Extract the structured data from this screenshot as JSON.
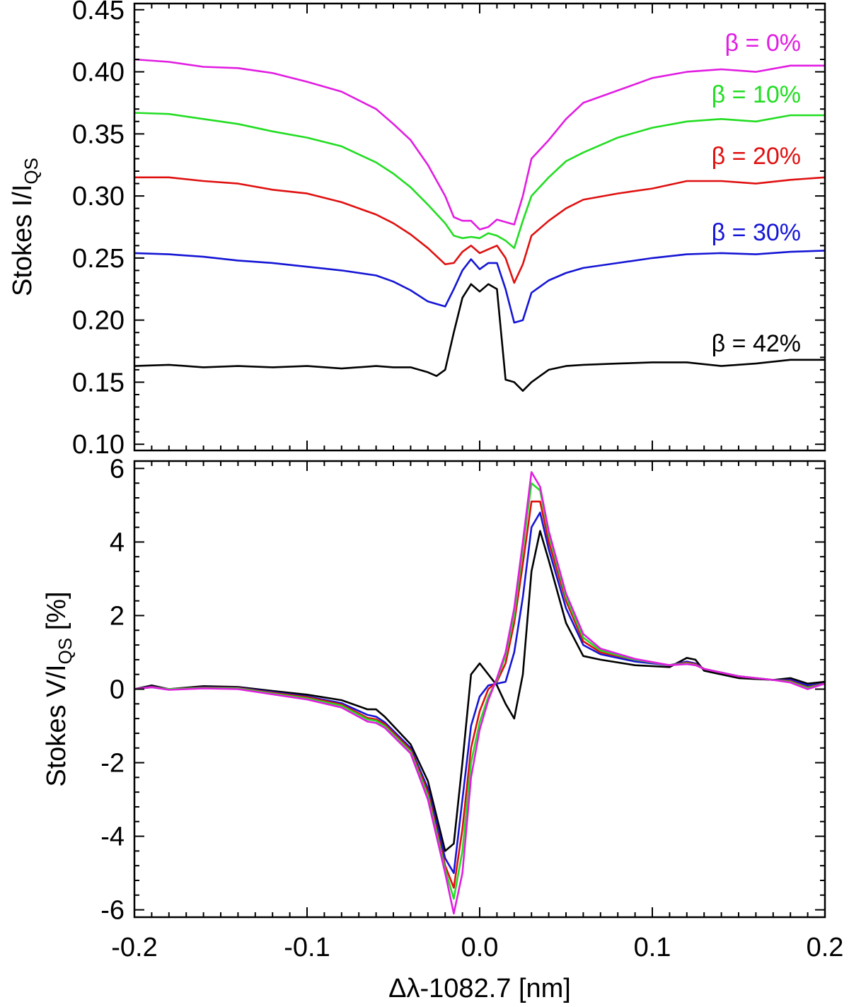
{
  "chart_data": [
    {
      "type": "line",
      "xlim": [
        -0.2,
        0.2
      ],
      "ylim": [
        0.095,
        0.455
      ],
      "ylabel": {
        "main": "Stokes I/I",
        "sub": "QS"
      },
      "yticks": [
        "0.10",
        "0.15",
        "0.20",
        "0.25",
        "0.30",
        "0.35",
        "0.40",
        "0.45"
      ],
      "ytick_values": [
        0.1,
        0.15,
        0.2,
        0.25,
        0.3,
        0.35,
        0.4,
        0.45
      ],
      "xtick_values": [
        -0.2,
        -0.1,
        0.0,
        0.1,
        0.2
      ],
      "legend": [
        {
          "label": "β = 0%",
          "color": "#e11de1"
        },
        {
          "label": "β = 10%",
          "color": "#22dd22"
        },
        {
          "label": "β = 20%",
          "color": "#e01010"
        },
        {
          "label": "β = 30%",
          "color": "#1515d5"
        },
        {
          "label": "β = 42%",
          "color": "#000000"
        }
      ],
      "series": [
        {
          "name": "β = 0%",
          "color": "#e11de1",
          "x": [
            -0.2,
            -0.18,
            -0.16,
            -0.14,
            -0.12,
            -0.1,
            -0.08,
            -0.06,
            -0.05,
            -0.04,
            -0.03,
            -0.02,
            -0.015,
            -0.01,
            -0.005,
            0.0,
            0.005,
            0.01,
            0.015,
            0.02,
            0.025,
            0.03,
            0.04,
            0.05,
            0.06,
            0.08,
            0.1,
            0.12,
            0.14,
            0.16,
            0.18,
            0.2
          ],
          "y": [
            0.41,
            0.408,
            0.404,
            0.403,
            0.399,
            0.392,
            0.384,
            0.37,
            0.358,
            0.345,
            0.325,
            0.3,
            0.283,
            0.28,
            0.28,
            0.273,
            0.275,
            0.281,
            0.279,
            0.277,
            0.3,
            0.33,
            0.345,
            0.362,
            0.375,
            0.385,
            0.395,
            0.4,
            0.402,
            0.4,
            0.405,
            0.405
          ]
        },
        {
          "name": "β = 10%",
          "color": "#22dd22",
          "x": [
            -0.2,
            -0.18,
            -0.16,
            -0.14,
            -0.12,
            -0.1,
            -0.08,
            -0.06,
            -0.05,
            -0.04,
            -0.03,
            -0.02,
            -0.015,
            -0.01,
            -0.005,
            0.0,
            0.005,
            0.01,
            0.015,
            0.02,
            0.025,
            0.03,
            0.04,
            0.05,
            0.06,
            0.08,
            0.1,
            0.12,
            0.14,
            0.16,
            0.18,
            0.2
          ],
          "y": [
            0.367,
            0.366,
            0.362,
            0.358,
            0.352,
            0.347,
            0.34,
            0.327,
            0.318,
            0.307,
            0.293,
            0.278,
            0.268,
            0.266,
            0.267,
            0.266,
            0.27,
            0.268,
            0.264,
            0.258,
            0.28,
            0.3,
            0.315,
            0.328,
            0.335,
            0.347,
            0.355,
            0.36,
            0.362,
            0.36,
            0.365,
            0.365
          ]
        },
        {
          "name": "β = 20%",
          "color": "#e01010",
          "x": [
            -0.2,
            -0.18,
            -0.16,
            -0.14,
            -0.12,
            -0.1,
            -0.08,
            -0.06,
            -0.05,
            -0.04,
            -0.03,
            -0.02,
            -0.015,
            -0.01,
            -0.005,
            0.0,
            0.005,
            0.01,
            0.015,
            0.02,
            0.025,
            0.03,
            0.04,
            0.05,
            0.06,
            0.08,
            0.1,
            0.12,
            0.14,
            0.16,
            0.18,
            0.2
          ],
          "y": [
            0.315,
            0.315,
            0.312,
            0.31,
            0.305,
            0.302,
            0.295,
            0.285,
            0.278,
            0.269,
            0.258,
            0.245,
            0.246,
            0.255,
            0.26,
            0.254,
            0.257,
            0.26,
            0.25,
            0.23,
            0.245,
            0.268,
            0.28,
            0.29,
            0.297,
            0.302,
            0.306,
            0.312,
            0.312,
            0.31,
            0.313,
            0.315
          ]
        },
        {
          "name": "β = 30%",
          "color": "#1515d5",
          "x": [
            -0.2,
            -0.18,
            -0.16,
            -0.14,
            -0.12,
            -0.1,
            -0.08,
            -0.06,
            -0.05,
            -0.04,
            -0.03,
            -0.02,
            -0.015,
            -0.01,
            -0.005,
            0.0,
            0.005,
            0.01,
            0.015,
            0.02,
            0.025,
            0.03,
            0.04,
            0.05,
            0.06,
            0.08,
            0.1,
            0.12,
            0.14,
            0.16,
            0.18,
            0.2
          ],
          "y": [
            0.254,
            0.253,
            0.251,
            0.248,
            0.246,
            0.243,
            0.24,
            0.236,
            0.231,
            0.224,
            0.215,
            0.211,
            0.225,
            0.24,
            0.249,
            0.241,
            0.246,
            0.246,
            0.225,
            0.198,
            0.2,
            0.222,
            0.232,
            0.238,
            0.242,
            0.246,
            0.25,
            0.253,
            0.254,
            0.253,
            0.255,
            0.256
          ]
        },
        {
          "name": "β = 42%",
          "color": "#000000",
          "x": [
            -0.2,
            -0.18,
            -0.16,
            -0.14,
            -0.12,
            -0.1,
            -0.08,
            -0.06,
            -0.05,
            -0.04,
            -0.03,
            -0.025,
            -0.02,
            -0.015,
            -0.01,
            -0.005,
            0.0,
            0.005,
            0.01,
            0.015,
            0.02,
            0.025,
            0.03,
            0.04,
            0.05,
            0.06,
            0.08,
            0.1,
            0.12,
            0.14,
            0.16,
            0.18,
            0.2
          ],
          "y": [
            0.163,
            0.164,
            0.162,
            0.163,
            0.162,
            0.163,
            0.161,
            0.163,
            0.162,
            0.162,
            0.158,
            0.155,
            0.16,
            0.19,
            0.218,
            0.229,
            0.223,
            0.229,
            0.225,
            0.152,
            0.15,
            0.143,
            0.15,
            0.16,
            0.163,
            0.164,
            0.165,
            0.166,
            0.166,
            0.163,
            0.165,
            0.168,
            0.168
          ]
        }
      ]
    },
    {
      "type": "line",
      "xlim": [
        -0.2,
        0.2
      ],
      "ylim": [
        -6.2,
        6.2
      ],
      "xlabel": "Δλ-1082.7 [nm]",
      "ylabel": {
        "main": "Stokes V/I",
        "sub": "QS",
        "suffix": " [%]"
      },
      "yticks": [
        "-6",
        "-4",
        "-2",
        "0",
        "2",
        "4",
        "6"
      ],
      "ytick_values": [
        -6,
        -4,
        -2,
        0,
        2,
        4,
        6
      ],
      "xticks": [
        "-0.2",
        "-0.1",
        "0.0",
        "0.1",
        "0.2"
      ],
      "xtick_values": [
        -0.2,
        -0.1,
        0.0,
        0.1,
        0.2
      ],
      "series": [
        {
          "name": "β = 42%",
          "color": "#000000",
          "x": [
            -0.2,
            -0.19,
            -0.18,
            -0.16,
            -0.14,
            -0.12,
            -0.1,
            -0.08,
            -0.065,
            -0.06,
            -0.055,
            -0.04,
            -0.03,
            -0.02,
            -0.015,
            -0.01,
            -0.005,
            0.0,
            0.005,
            0.01,
            0.015,
            0.02,
            0.025,
            0.03,
            0.035,
            0.04,
            0.05,
            0.06,
            0.07,
            0.09,
            0.11,
            0.12,
            0.125,
            0.13,
            0.15,
            0.17,
            0.18,
            0.19,
            0.2
          ],
          "y": [
            0.0,
            0.1,
            0.0,
            0.08,
            0.06,
            -0.05,
            -0.15,
            -0.3,
            -0.55,
            -0.55,
            -0.75,
            -1.5,
            -2.5,
            -4.4,
            -4.2,
            -2.0,
            0.4,
            0.7,
            0.4,
            0.1,
            -0.4,
            -0.8,
            0.4,
            3.2,
            4.3,
            3.5,
            1.8,
            0.9,
            0.8,
            0.65,
            0.6,
            0.85,
            0.8,
            0.5,
            0.3,
            0.25,
            0.3,
            0.15,
            0.2
          ]
        },
        {
          "name": "β = 30%",
          "color": "#1515d5",
          "x": [
            -0.2,
            -0.19,
            -0.18,
            -0.16,
            -0.14,
            -0.12,
            -0.1,
            -0.08,
            -0.065,
            -0.06,
            -0.055,
            -0.04,
            -0.03,
            -0.02,
            -0.015,
            -0.01,
            -0.005,
            0.0,
            0.005,
            0.01,
            0.015,
            0.02,
            0.025,
            0.03,
            0.035,
            0.04,
            0.05,
            0.06,
            0.07,
            0.09,
            0.11,
            0.12,
            0.125,
            0.13,
            0.15,
            0.17,
            0.18,
            0.19,
            0.2
          ],
          "y": [
            0.0,
            0.07,
            0.0,
            0.05,
            0.04,
            -0.08,
            -0.2,
            -0.38,
            -0.7,
            -0.75,
            -0.9,
            -1.6,
            -2.7,
            -4.6,
            -5.0,
            -3.0,
            -1.0,
            -0.2,
            0.1,
            0.15,
            0.2,
            1.0,
            2.5,
            4.4,
            4.8,
            3.8,
            2.2,
            1.2,
            0.95,
            0.75,
            0.65,
            0.75,
            0.7,
            0.55,
            0.35,
            0.25,
            0.25,
            0.1,
            0.15
          ]
        },
        {
          "name": "β = 20%",
          "color": "#e01010",
          "x": [
            -0.2,
            -0.19,
            -0.18,
            -0.16,
            -0.14,
            -0.12,
            -0.1,
            -0.08,
            -0.065,
            -0.06,
            -0.055,
            -0.04,
            -0.03,
            -0.02,
            -0.015,
            -0.01,
            -0.005,
            0.0,
            0.005,
            0.01,
            0.015,
            0.02,
            0.025,
            0.03,
            0.035,
            0.04,
            0.05,
            0.06,
            0.07,
            0.09,
            0.11,
            0.12,
            0.125,
            0.13,
            0.15,
            0.17,
            0.18,
            0.19,
            0.2
          ],
          "y": [
            0.0,
            0.06,
            0.0,
            0.04,
            0.03,
            -0.1,
            -0.22,
            -0.42,
            -0.78,
            -0.82,
            -0.95,
            -1.65,
            -2.8,
            -4.8,
            -5.4,
            -3.8,
            -1.6,
            -0.6,
            0.0,
            0.2,
            0.7,
            1.8,
            3.4,
            5.1,
            5.1,
            4.0,
            2.4,
            1.3,
            1.0,
            0.8,
            0.65,
            0.72,
            0.68,
            0.55,
            0.35,
            0.25,
            0.22,
            0.05,
            0.15
          ]
        },
        {
          "name": "β = 10%",
          "color": "#22dd22",
          "x": [
            -0.2,
            -0.19,
            -0.18,
            -0.16,
            -0.14,
            -0.12,
            -0.1,
            -0.08,
            -0.065,
            -0.06,
            -0.055,
            -0.04,
            -0.03,
            -0.02,
            -0.015,
            -0.01,
            -0.005,
            0.0,
            0.005,
            0.01,
            0.015,
            0.02,
            0.025,
            0.03,
            0.035,
            0.04,
            0.05,
            0.06,
            0.07,
            0.09,
            0.11,
            0.12,
            0.125,
            0.13,
            0.15,
            0.17,
            0.18,
            0.19,
            0.2
          ],
          "y": [
            0.0,
            0.05,
            0.0,
            0.03,
            0.02,
            -0.12,
            -0.25,
            -0.45,
            -0.82,
            -0.86,
            -1.0,
            -1.7,
            -2.9,
            -4.9,
            -5.7,
            -4.4,
            -2.0,
            -0.9,
            -0.2,
            0.25,
            0.9,
            2.0,
            3.8,
            5.6,
            5.4,
            4.2,
            2.5,
            1.4,
            1.05,
            0.8,
            0.65,
            0.7,
            0.66,
            0.55,
            0.35,
            0.25,
            0.2,
            0.03,
            0.15
          ]
        },
        {
          "name": "β = 0%",
          "color": "#e11de1",
          "x": [
            -0.2,
            -0.19,
            -0.18,
            -0.16,
            -0.14,
            -0.12,
            -0.1,
            -0.08,
            -0.065,
            -0.06,
            -0.055,
            -0.04,
            -0.03,
            -0.02,
            -0.015,
            -0.01,
            -0.005,
            0.0,
            0.005,
            0.01,
            0.015,
            0.02,
            0.025,
            0.03,
            0.035,
            0.04,
            0.05,
            0.06,
            0.07,
            0.09,
            0.11,
            0.12,
            0.125,
            0.13,
            0.15,
            0.17,
            0.18,
            0.19,
            0.2
          ],
          "y": [
            0.0,
            0.05,
            -0.02,
            0.02,
            0.0,
            -0.14,
            -0.28,
            -0.5,
            -0.88,
            -0.92,
            -1.05,
            -1.75,
            -3.0,
            -5.0,
            -6.1,
            -5.0,
            -2.4,
            -1.1,
            -0.3,
            0.3,
            1.0,
            2.2,
            4.0,
            5.9,
            5.5,
            4.3,
            2.6,
            1.5,
            1.1,
            0.82,
            0.65,
            0.68,
            0.65,
            0.55,
            0.35,
            0.25,
            0.18,
            0.0,
            0.15
          ]
        }
      ]
    }
  ]
}
